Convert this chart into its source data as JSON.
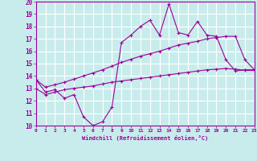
{
  "xlabel": "Windchill (Refroidissement éolien,°C)",
  "background_color": "#c8ecec",
  "grid_color": "#ffffff",
  "line_color": "#990099",
  "x_values": [
    0,
    1,
    2,
    3,
    4,
    5,
    6,
    7,
    8,
    9,
    10,
    11,
    12,
    13,
    14,
    15,
    16,
    17,
    18,
    19,
    20,
    21,
    22,
    23
  ],
  "main_line": [
    13.7,
    12.7,
    12.9,
    12.2,
    12.5,
    10.7,
    10.0,
    10.3,
    11.5,
    16.7,
    17.3,
    18.0,
    18.5,
    17.3,
    19.8,
    17.5,
    17.3,
    18.4,
    17.3,
    17.2,
    15.3,
    14.4,
    14.5,
    14.5
  ],
  "upper_line": [
    13.7,
    13.1,
    13.3,
    13.5,
    13.75,
    14.0,
    14.25,
    14.5,
    14.8,
    15.1,
    15.35,
    15.6,
    15.8,
    16.0,
    16.25,
    16.5,
    16.65,
    16.8,
    17.0,
    17.1,
    17.2,
    17.2,
    15.3,
    14.5
  ],
  "lower_line": [
    13.0,
    12.5,
    12.7,
    12.9,
    13.0,
    13.1,
    13.2,
    13.35,
    13.5,
    13.6,
    13.7,
    13.8,
    13.9,
    14.0,
    14.1,
    14.2,
    14.3,
    14.4,
    14.5,
    14.55,
    14.6,
    14.55,
    14.45,
    14.45
  ],
  "ylim": [
    10,
    20
  ],
  "xlim": [
    0,
    23
  ],
  "yticks": [
    10,
    11,
    12,
    13,
    14,
    15,
    16,
    17,
    18,
    19,
    20
  ],
  "xtick_labels": [
    "0",
    "1",
    "2",
    "3",
    "4",
    "5",
    "6",
    "7",
    "8",
    "9",
    "10",
    "11",
    "12",
    "13",
    "14",
    "15",
    "16",
    "17",
    "18",
    "19",
    "20",
    "21",
    "22",
    "23"
  ]
}
